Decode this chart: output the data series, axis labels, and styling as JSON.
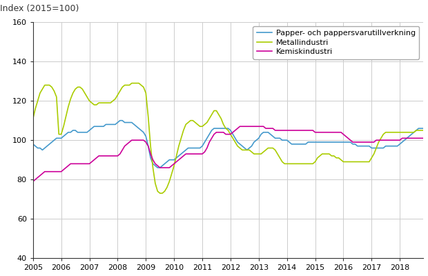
{
  "title": "Index (2015=100)",
  "ylim": [
    40,
    160
  ],
  "yticks": [
    40,
    60,
    80,
    100,
    120,
    140,
    160
  ],
  "xlim": [
    2005.0,
    2018.83
  ],
  "xticks": [
    2005,
    2006,
    2007,
    2008,
    2009,
    2010,
    2011,
    2012,
    2013,
    2014,
    2015,
    2016,
    2017,
    2018
  ],
  "series": {
    "papper": {
      "label": "Papper- och pappersvarutillverkning",
      "color": "#4499CC",
      "data": [
        98,
        97,
        96,
        96,
        95,
        96,
        97,
        98,
        99,
        100,
        101,
        101,
        101,
        102,
        103,
        104,
        104,
        105,
        105,
        104,
        104,
        104,
        104,
        104,
        105,
        106,
        107,
        107,
        107,
        107,
        107,
        108,
        108,
        108,
        108,
        108,
        109,
        110,
        110,
        109,
        109,
        109,
        109,
        108,
        107,
        106,
        105,
        104,
        102,
        97,
        91,
        88,
        87,
        86,
        86,
        87,
        88,
        89,
        90,
        90,
        90,
        91,
        92,
        93,
        94,
        95,
        96,
        96,
        96,
        96,
        96,
        96,
        97,
        99,
        101,
        103,
        105,
        106,
        106,
        106,
        106,
        106,
        106,
        106,
        105,
        103,
        101,
        99,
        98,
        97,
        96,
        95,
        96,
        97,
        99,
        100,
        101,
        103,
        104,
        104,
        104,
        103,
        102,
        101,
        101,
        101,
        100,
        100,
        100,
        99,
        98,
        98,
        98,
        98,
        98,
        98,
        98,
        99,
        99,
        99,
        99,
        99,
        99,
        99,
        99,
        99,
        99,
        99,
        99,
        99,
        99,
        99,
        99,
        99,
        99,
        99,
        98,
        98,
        97,
        97,
        97,
        97,
        97,
        97,
        96,
        96,
        96,
        96,
        96,
        96,
        97,
        97,
        97,
        97,
        97,
        97,
        98,
        99,
        100,
        101,
        102,
        103,
        104,
        105,
        106,
        106,
        106,
        106
      ]
    },
    "metall": {
      "label": "Metallindustri",
      "color": "#AACC00",
      "data": [
        111,
        116,
        120,
        124,
        126,
        128,
        128,
        128,
        127,
        125,
        122,
        103,
        103,
        107,
        112,
        117,
        121,
        124,
        126,
        127,
        127,
        126,
        124,
        122,
        120,
        119,
        118,
        118,
        119,
        119,
        119,
        119,
        119,
        119,
        120,
        121,
        123,
        125,
        127,
        128,
        128,
        128,
        129,
        129,
        129,
        129,
        128,
        127,
        124,
        112,
        97,
        86,
        78,
        74,
        73,
        73,
        74,
        76,
        79,
        83,
        87,
        92,
        97,
        101,
        105,
        108,
        109,
        110,
        110,
        109,
        108,
        107,
        107,
        108,
        109,
        111,
        113,
        115,
        115,
        113,
        111,
        108,
        106,
        105,
        103,
        101,
        99,
        97,
        96,
        95,
        95,
        95,
        95,
        94,
        93,
        93,
        93,
        93,
        94,
        95,
        96,
        96,
        96,
        95,
        93,
        91,
        89,
        88,
        88,
        88,
        88,
        88,
        88,
        88,
        88,
        88,
        88,
        88,
        88,
        88,
        89,
        91,
        92,
        93,
        93,
        93,
        93,
        92,
        92,
        91,
        91,
        90,
        89,
        89,
        89,
        89,
        89,
        89,
        89,
        89,
        89,
        89,
        89,
        89,
        91,
        93,
        96,
        99,
        101,
        103,
        104,
        104,
        104,
        104,
        104,
        104,
        104,
        104,
        104,
        104,
        104,
        104,
        104,
        105,
        105,
        105,
        105,
        105
      ]
    },
    "kemi": {
      "label": "Kemiskindustri",
      "color": "#CC0099",
      "data": [
        79,
        80,
        81,
        82,
        83,
        84,
        84,
        84,
        84,
        84,
        84,
        84,
        84,
        85,
        86,
        87,
        88,
        88,
        88,
        88,
        88,
        88,
        88,
        88,
        88,
        89,
        90,
        91,
        92,
        92,
        92,
        92,
        92,
        92,
        92,
        92,
        92,
        93,
        95,
        97,
        98,
        99,
        100,
        100,
        100,
        100,
        100,
        100,
        99,
        97,
        93,
        90,
        88,
        87,
        86,
        86,
        86,
        86,
        86,
        87,
        88,
        89,
        90,
        91,
        92,
        93,
        93,
        93,
        93,
        93,
        93,
        93,
        93,
        94,
        96,
        99,
        101,
        103,
        104,
        104,
        104,
        104,
        103,
        103,
        103,
        104,
        105,
        106,
        107,
        107,
        107,
        107,
        107,
        107,
        107,
        107,
        107,
        107,
        107,
        106,
        106,
        106,
        106,
        105,
        105,
        105,
        105,
        105,
        105,
        105,
        105,
        105,
        105,
        105,
        105,
        105,
        105,
        105,
        105,
        105,
        104,
        104,
        104,
        104,
        104,
        104,
        104,
        104,
        104,
        104,
        104,
        104,
        103,
        102,
        101,
        100,
        99,
        99,
        99,
        99,
        99,
        99,
        99,
        99,
        99,
        99,
        100,
        100,
        100,
        100,
        100,
        100,
        100,
        100,
        100,
        100,
        100,
        101,
        101,
        101,
        101,
        101,
        101,
        101,
        101,
        101,
        101,
        101
      ]
    }
  },
  "grid_color": "#CCCCCC",
  "background_color": "#FFFFFF",
  "line_width": 1.2
}
